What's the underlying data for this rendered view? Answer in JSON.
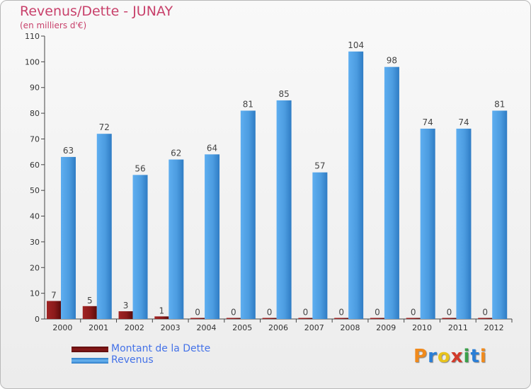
{
  "chart_data": {
    "type": "bar",
    "title": "Revenus/Dette - JUNAY",
    "subtitle": "(en milliers d'€)",
    "categories": [
      "2000",
      "2001",
      "2002",
      "2003",
      "2004",
      "2005",
      "2006",
      "2007",
      "2008",
      "2009",
      "2010",
      "2011",
      "2012"
    ],
    "series": [
      {
        "name": "Montant de la Dette",
        "values": [
          7,
          5,
          3,
          1,
          0,
          0,
          0,
          0,
          0,
          0,
          0,
          0,
          0
        ],
        "color": "#8b1a1a"
      },
      {
        "name": "Revenus",
        "values": [
          63,
          72,
          56,
          62,
          64,
          81,
          85,
          57,
          104,
          98,
          74,
          74,
          81
        ],
        "color": "#4d9ee3"
      }
    ],
    "yticks": [
      0,
      10,
      20,
      30,
      40,
      50,
      60,
      70,
      80,
      90,
      100,
      110
    ],
    "ylim": [
      0,
      110
    ],
    "grid": false,
    "legend": "bottom-left"
  },
  "logo": {
    "letters": [
      "P",
      "r",
      "o",
      "x",
      "i",
      "t",
      "i"
    ],
    "colors": [
      "#f08a1c",
      "#2a7ed6",
      "#e8c31c",
      "#d23a2a",
      "#3aa04a",
      "#2a7ed6",
      "#f08a1c"
    ]
  }
}
